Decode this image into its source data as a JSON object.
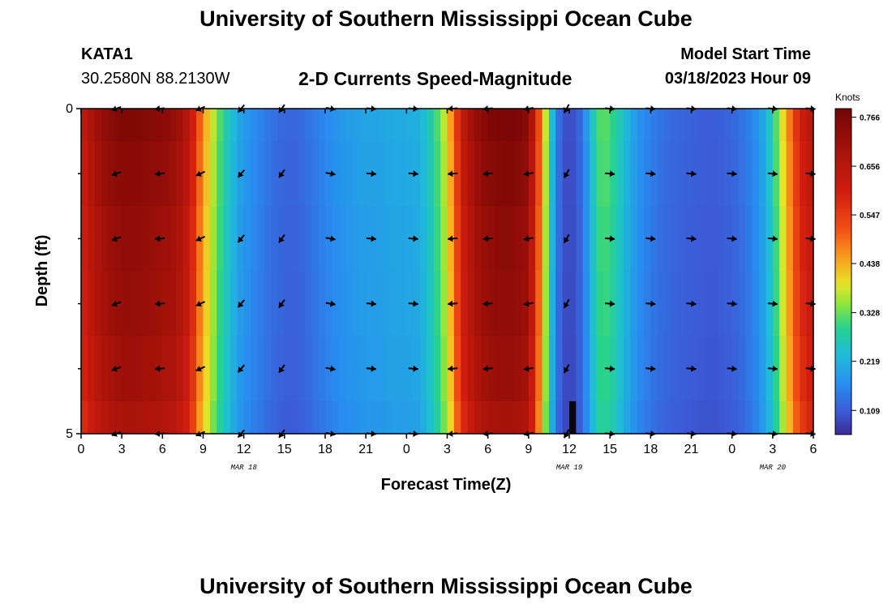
{
  "header": {
    "title": "University of Southern Mississippi Ocean Cube",
    "station_id": "KATA1",
    "coordinates": "30.2580N  88.2130W",
    "subtitle": "2-D Currents Speed-Magnitude",
    "model_start_label": "Model Start Time",
    "model_start_value": "03/18/2023 Hour 09"
  },
  "footer": {
    "title": "University of Southern Mississippi Ocean Cube"
  },
  "chart_data": {
    "type": "heatmap",
    "title": "2-D Currents Speed-Magnitude",
    "xlabel": "Forecast Time(Z)",
    "ylabel": "Depth (ft)",
    "x_start_hour": 0,
    "x_end_hour": 54,
    "x_tick_labels": [
      "0",
      "3",
      "6",
      "9",
      "12",
      "15",
      "18",
      "21",
      "0",
      "3",
      "6",
      "9",
      "12",
      "15",
      "18",
      "21",
      "0",
      "3",
      "6"
    ],
    "date_labels": [
      {
        "label": "MAR 18",
        "hour": 12
      },
      {
        "label": "MAR 19",
        "hour": 36
      },
      {
        "label": "MAR 20",
        "hour": 51
      }
    ],
    "y_range": [
      0,
      5
    ],
    "y_tick_labels": [
      "0",
      "5"
    ],
    "y_minor_ticks": [
      1,
      2,
      3,
      4
    ],
    "colorbar": {
      "title": "Knots",
      "min": 0.055,
      "max": 0.785,
      "tick_labels": [
        "0.766",
        "0.656",
        "0.547",
        "0.438",
        "0.328",
        "0.219",
        "0.109"
      ],
      "tick_values": [
        0.766,
        0.656,
        0.547,
        0.438,
        0.328,
        0.219,
        0.109
      ]
    },
    "speed_profile_by_hour": [
      [
        0,
        0.62
      ],
      [
        1,
        0.7
      ],
      [
        2,
        0.74
      ],
      [
        3,
        0.76
      ],
      [
        4,
        0.76
      ],
      [
        5,
        0.75
      ],
      [
        6,
        0.74
      ],
      [
        7,
        0.72
      ],
      [
        8,
        0.65
      ],
      [
        8.5,
        0.55
      ],
      [
        9,
        0.46
      ],
      [
        9.5,
        0.4
      ],
      [
        10,
        0.34
      ],
      [
        10.5,
        0.29
      ],
      [
        11,
        0.25
      ],
      [
        11.5,
        0.21
      ],
      [
        12,
        0.185
      ],
      [
        13,
        0.16
      ],
      [
        14,
        0.135
      ],
      [
        15,
        0.12
      ],
      [
        16,
        0.12
      ],
      [
        17,
        0.14
      ],
      [
        18,
        0.16
      ],
      [
        19,
        0.18
      ],
      [
        20,
        0.19
      ],
      [
        21,
        0.2
      ],
      [
        22,
        0.2
      ],
      [
        23,
        0.21
      ],
      [
        24,
        0.21
      ],
      [
        25,
        0.22
      ],
      [
        25.5,
        0.25
      ],
      [
        26,
        0.29
      ],
      [
        26.5,
        0.34
      ],
      [
        27,
        0.4
      ],
      [
        27.5,
        0.5
      ],
      [
        28,
        0.62
      ],
      [
        29,
        0.72
      ],
      [
        30,
        0.76
      ],
      [
        31,
        0.77
      ],
      [
        32,
        0.77
      ],
      [
        33,
        0.74
      ],
      [
        33.5,
        0.6
      ],
      [
        34,
        0.45
      ],
      [
        34.5,
        0.3
      ],
      [
        35,
        0.16
      ],
      [
        35.5,
        0.1
      ],
      [
        36,
        0.09
      ],
      [
        36.5,
        0.1
      ],
      [
        37,
        0.14
      ],
      [
        37.5,
        0.22
      ],
      [
        38,
        0.3
      ],
      [
        38.5,
        0.33
      ],
      [
        39,
        0.31
      ],
      [
        39.5,
        0.28
      ],
      [
        40,
        0.24
      ],
      [
        41,
        0.18
      ],
      [
        42,
        0.15
      ],
      [
        43,
        0.13
      ],
      [
        44,
        0.12
      ],
      [
        45,
        0.115
      ],
      [
        46,
        0.11
      ],
      [
        47,
        0.11
      ],
      [
        48,
        0.12
      ],
      [
        49,
        0.14
      ],
      [
        50,
        0.18
      ],
      [
        50.5,
        0.22
      ],
      [
        51,
        0.28
      ],
      [
        51.5,
        0.36
      ],
      [
        52,
        0.44
      ],
      [
        52.5,
        0.52
      ],
      [
        53,
        0.6
      ],
      [
        54,
        0.66
      ]
    ],
    "depth_factors": [
      1.0,
      0.98,
      0.96,
      0.95,
      0.93,
      0.9
    ],
    "anomaly": {
      "hour_start": 35.8,
      "hour_end": 36.6,
      "depth_start": 4.5,
      "depth_end": 5.0,
      "value": 0.02
    },
    "vector_hours": [
      2.6,
      5.8,
      8.8,
      11.8,
      14.8,
      18.4,
      21.4,
      24.5,
      27.4,
      30.0,
      33.0,
      35.8,
      39.0,
      42.0,
      45.0,
      48.0,
      51.0,
      53.8
    ],
    "vector_depths": [
      0,
      1,
      2,
      3,
      4,
      5
    ],
    "vector_directions_deg": [
      200,
      185,
      205,
      230,
      235,
      350,
      355,
      355,
      185,
      185,
      190,
      240,
      355,
      355,
      355,
      355,
      355,
      355
    ]
  }
}
